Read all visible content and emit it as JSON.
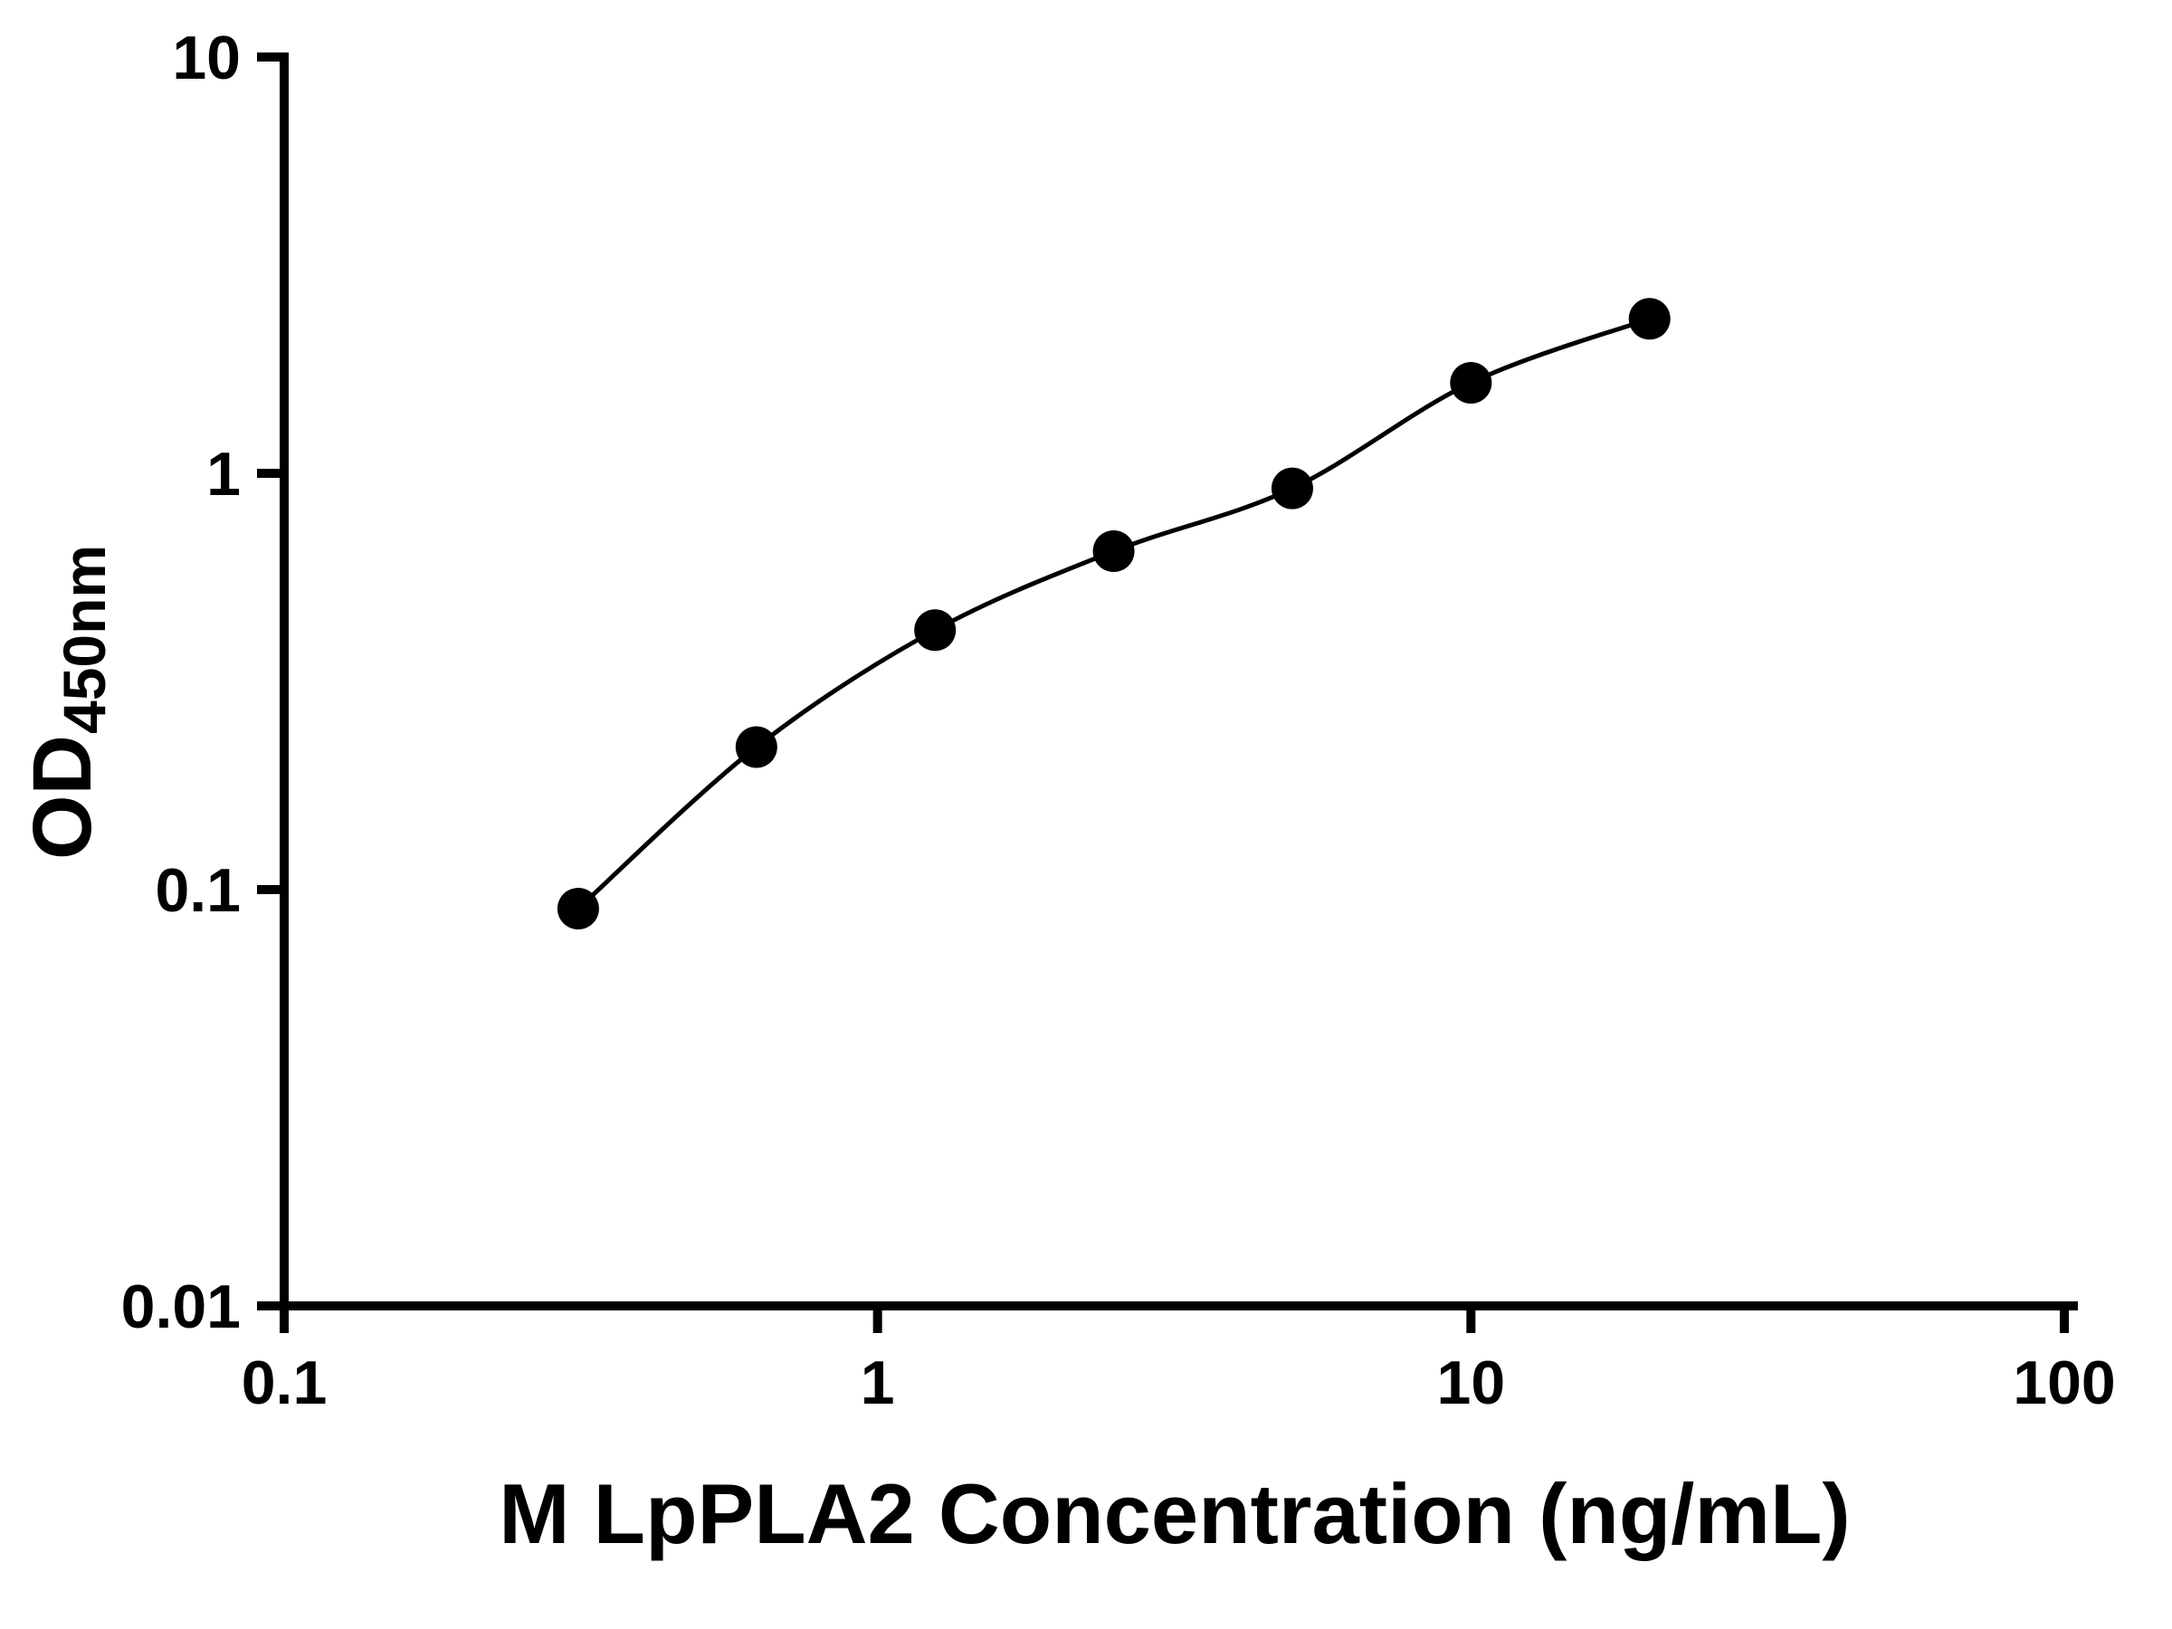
{
  "chart_data": {
    "type": "scatter",
    "title": "",
    "xlabel": "M LpPLA2 Concentration (ng/mL)",
    "ylabel_main": "OD",
    "ylabel_sub": "450nm",
    "x_scale": "log",
    "y_scale": "log",
    "xlim": [
      0.1,
      100
    ],
    "ylim": [
      0.01,
      10
    ],
    "x_ticks": [
      0.1,
      1,
      10,
      100
    ],
    "y_ticks": [
      0.01,
      0.1,
      1,
      10
    ],
    "x_tick_labels": [
      "0.1",
      "1",
      "10",
      "100"
    ],
    "y_tick_labels": [
      "0.01",
      "0.1",
      "1",
      "10"
    ],
    "grid": false,
    "legend": "none",
    "colors": {
      "axis": "#000000",
      "marker": "#000000",
      "curve": "#000000",
      "background": "#ffffff"
    },
    "series": [
      {
        "name": "standard-curve",
        "marker": "circle",
        "color": "#000000",
        "fit": "smooth",
        "points": [
          {
            "x": 0.313,
            "y": 0.09
          },
          {
            "x": 0.625,
            "y": 0.22
          },
          {
            "x": 1.25,
            "y": 0.42
          },
          {
            "x": 2.5,
            "y": 0.65
          },
          {
            "x": 5,
            "y": 0.92
          },
          {
            "x": 10,
            "y": 1.65
          },
          {
            "x": 20,
            "y": 2.35
          }
        ]
      }
    ]
  }
}
